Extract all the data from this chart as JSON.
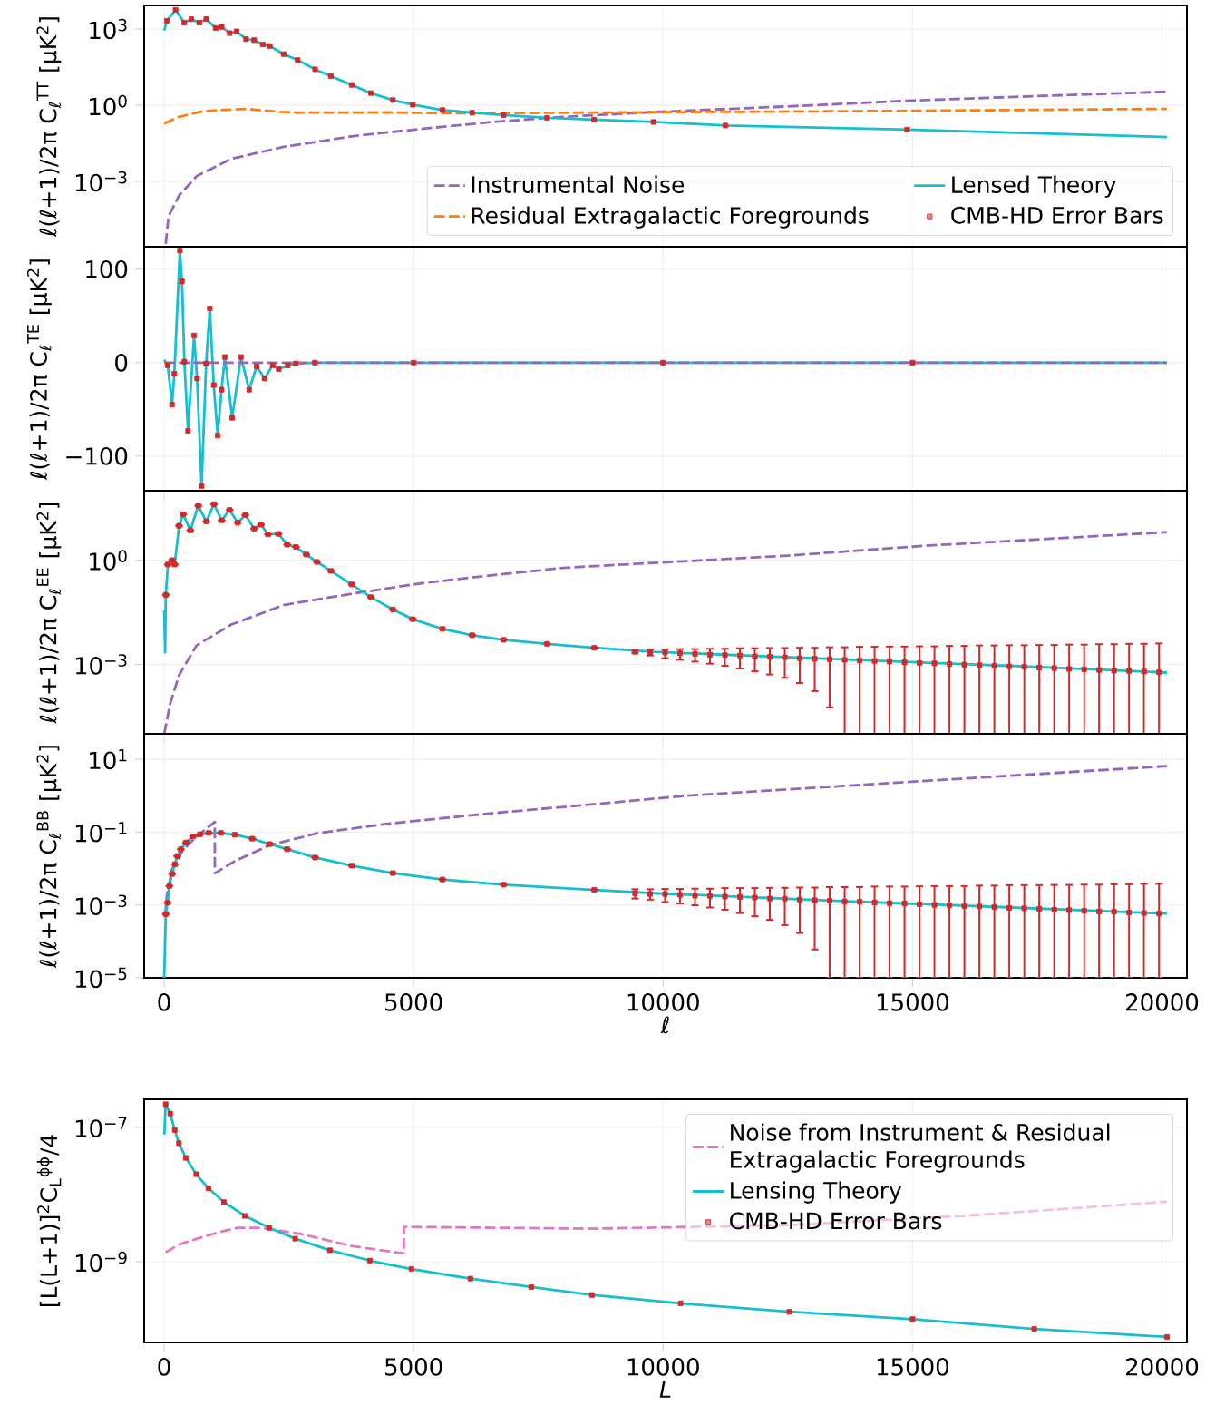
{
  "chart_data": [
    {
      "type": "line",
      "ylabel": "ℓ(ℓ+1)/2π C$_{ℓ}$$^{TT}$ [μK$^{2}$]",
      "xlim": [
        -400,
        20500
      ],
      "xticks": [
        0,
        5000,
        10000,
        15000,
        20000
      ],
      "ylim": [
        2.7e-06,
        8500
      ],
      "yticks": [
        {
          "value": 0.001,
          "label": "10$^{−3}$"
        },
        {
          "value": 1,
          "label": "10$^{0}$"
        },
        {
          "value": 1000,
          "label": "10$^{3}$"
        }
      ],
      "log": "y",
      "grid": true,
      "legend": "bottom right",
      "tick_labels": "y",
      "series": [
        {
          "name": "Instrumental Noise",
          "type": "line",
          "line_style": "dashed",
          "color": "#9467bd",
          "x": [
            33,
            89,
            300,
            649,
            1349,
            2397,
            3796,
            5195,
            6593,
            7991,
            9740,
            12500,
            14890,
            17500,
            20100
          ],
          "values": [
            3.5e-06,
            4.3e-05,
            0.00028,
            0.0016,
            0.0078,
            0.023,
            0.061,
            0.12,
            0.22,
            0.35,
            0.53,
            0.9,
            1.5,
            2.3,
            3.4
          ]
        },
        {
          "name": "Residual Extragalactic Foregrounds",
          "type": "line",
          "line_style": "dashed",
          "color": "#ff7f0e",
          "x": [
            2,
            300,
            789,
            1627,
            2255,
            2607,
            4495,
            5891,
            14890,
            20100
          ],
          "values": [
            0.19,
            0.35,
            0.59,
            0.72,
            0.56,
            0.51,
            0.52,
            0.48,
            0.6,
            0.72
          ]
        },
        {
          "name": "Lensed Theory",
          "type": "line",
          "line_style": "solid",
          "color": "#17becf",
          "x": [
            2,
            55,
            229,
            404,
            544,
            705,
            845,
            1033,
            1153,
            1313,
            1453,
            1642,
            1804,
            1978,
            2118,
            2397,
            2676,
            3027,
            3342,
            3760,
            4145,
            4585,
            4985,
            5578,
            6173,
            6804,
            7676,
            8618,
            9809,
            11250,
            14890,
            20100
          ],
          "values": [
            870,
            2100,
            5700,
            1780,
            2450,
            1780,
            2450,
            1100,
            1220,
            690,
            810,
            400,
            365,
            245,
            215,
            103,
            60,
            26,
            14,
            6.3,
            3.0,
            1.6,
            1.05,
            0.65,
            0.51,
            0.41,
            0.32,
            0.27,
            0.22,
            0.16,
            0.11,
            0.056
          ]
        },
        {
          "name": "CMB-HD Error Bars",
          "type": "scatter",
          "marker": "square",
          "color": "#d62728",
          "x": [
            55,
            229,
            404,
            544,
            705,
            845,
            1033,
            1153,
            1313,
            1453,
            1642,
            1804,
            1978,
            2118,
            2397,
            2676,
            3027,
            3342,
            3760,
            4145,
            4585,
            4985,
            5578,
            6173,
            6804,
            7676,
            8618,
            9809,
            11250,
            14890
          ],
          "values": [
            2100,
            5700,
            1780,
            2450,
            1780,
            2450,
            1100,
            1220,
            690,
            810,
            400,
            365,
            245,
            215,
            103,
            60,
            26,
            14,
            6.3,
            3.0,
            1.6,
            1.05,
            0.65,
            0.51,
            0.41,
            0.32,
            0.27,
            0.22,
            0.16,
            0.11
          ]
        }
      ]
    },
    {
      "type": "line",
      "ylabel": "ℓ(ℓ+1)/2π C$_{ℓ}$$^{TE}$ [μK$^{2}$]",
      "xlim": [
        -400,
        20500
      ],
      "xticks": [
        0,
        5000,
        10000,
        15000,
        20000
      ],
      "ylim": [
        -137,
        124
      ],
      "yticks": [
        {
          "value": -100,
          "label": "−100"
        },
        0,
        100
      ],
      "grid": true,
      "tick_labels": "y",
      "series": [
        {
          "type": "line",
          "line_style": "solid",
          "color": "#17becf",
          "x": [
            2,
            73,
            158,
            205,
            315,
            358,
            406,
            479,
            600,
            660,
            751,
            842,
            915,
            995,
            1073,
            1151,
            1218,
            1364,
            1540,
            1704,
            1855,
            2013,
            2176,
            2297,
            2479,
            2636,
            3024,
            5000,
            10000,
            15000,
            20100
          ],
          "values": [
            3,
            -3,
            -45,
            -12,
            120,
            87,
            1,
            -73,
            29,
            -17,
            -132,
            -1,
            58,
            -24,
            -78,
            -29,
            6,
            -59,
            6,
            -29,
            -4,
            -17,
            -3,
            -7,
            -3,
            -1,
            0,
            0,
            0,
            0,
            0
          ]
        },
        {
          "type": "line",
          "line_style": "dashed",
          "color": "#9467bd",
          "x": [
            2,
            20100
          ],
          "values": [
            0,
            0
          ]
        },
        {
          "type": "scatter",
          "marker": "square",
          "color": "#d62728",
          "x": [
            73,
            158,
            205,
            315,
            358,
            406,
            479,
            600,
            660,
            751,
            842,
            915,
            995,
            1073,
            1151,
            1218,
            1364,
            1540,
            1704,
            1855,
            2013,
            2176,
            2297,
            2479,
            2636,
            3024,
            5000,
            10000,
            15000
          ],
          "values": [
            -3,
            -45,
            -12,
            120,
            87,
            1,
            -73,
            29,
            -17,
            -132,
            -1,
            58,
            -24,
            -78,
            -29,
            6,
            -59,
            6,
            -29,
            -4,
            -17,
            -3,
            -7,
            -3,
            -1,
            0,
            0,
            0,
            0
          ]
        }
      ]
    },
    {
      "type": "line",
      "ylabel": "ℓ(ℓ+1)/2π C$_{ℓ}$$^{EE}$ [μK$^{2}$]",
      "xlim": [
        -400,
        20500
      ],
      "xticks": [
        0,
        5000,
        10000,
        15000,
        20000
      ],
      "ylim": [
        1e-05,
        100
      ],
      "yticks": [
        {
          "value": 0.001,
          "label": "10$^{−3}$"
        },
        {
          "value": 1,
          "label": "10$^{0}$"
        }
      ],
      "log": "y",
      "grid": true,
      "tick_labels": "y",
      "series": [
        {
          "type": "line",
          "line_style": "dashed",
          "color": "#9467bd",
          "x": [
            2,
            124,
            300,
            649,
            1349,
            2397,
            3796,
            5195,
            6593,
            7991,
            9436,
            12500,
            15250,
            20100
          ],
          "values": [
            1e-05,
            7.6e-05,
            0.00049,
            0.0035,
            0.014,
            0.051,
            0.11,
            0.22,
            0.37,
            0.6,
            0.78,
            1.35,
            2.6,
            6.4
          ]
        },
        {
          "type": "line",
          "line_style": "solid",
          "color": "#17becf",
          "x": [
            2,
            20,
            33,
            76,
            160,
            211,
            300,
            384,
            524,
            684,
            845,
            998,
            1153,
            1313,
            1475,
            1627,
            1804,
            1942,
            2082,
            2293,
            2467,
            2642,
            2851,
            3062,
            3342,
            3760,
            4145,
            4585,
            4985,
            5578,
            6173,
            6804,
            7676,
            8622,
            9809,
            13800,
            17000,
            20100
          ],
          "values": [
            0.036,
            0.0022,
            0.1,
            0.75,
            1.0,
            0.75,
            9.8,
            21,
            7.2,
            37,
            13,
            41,
            14,
            28,
            12,
            20,
            8.1,
            10.5,
            5.5,
            5.7,
            2.8,
            2.4,
            1.45,
            0.89,
            0.49,
            0.2,
            0.086,
            0.038,
            0.02,
            0.0105,
            0.0069,
            0.0051,
            0.0039,
            0.003,
            0.0023,
            0.00135,
            0.0009,
            0.00058
          ]
        },
        {
          "type": "scatter",
          "marker": "square",
          "color": "#d62728",
          "x": [
            33,
            76,
            160,
            211,
            300,
            384,
            524,
            684,
            845,
            998,
            1153,
            1313,
            1475,
            1627,
            1804,
            1942,
            2082,
            2293,
            2467,
            2642,
            2851,
            3062,
            3342,
            3760,
            4145,
            4585,
            4985,
            5578,
            6173,
            6804,
            7676,
            8622,
            9440,
            9740,
            10040,
            10340,
            10640,
            10940,
            11240,
            11540,
            11840,
            12140,
            12440,
            12740,
            13040,
            13340,
            13640,
            13940,
            14240,
            14540,
            14840,
            15140,
            15440,
            15740,
            16040,
            16340,
            16640,
            16940,
            17240,
            17540,
            17840,
            18140,
            18440,
            18740,
            19040,
            19340,
            19640,
            19940
          ],
          "values": [
            0.1,
            0.75,
            1.0,
            0.75,
            9.8,
            21,
            7.2,
            37,
            13,
            41,
            14,
            28,
            12,
            20,
            8.1,
            10.5,
            5.5,
            5.7,
            2.8,
            2.4,
            1.45,
            0.89,
            0.49,
            0.2,
            0.086,
            0.038,
            0.02,
            0.0105,
            0.0069,
            0.0051,
            0.0039,
            0.003,
            0.0023,
            0.0022,
            0.0022,
            0.0021,
            0.002,
            0.0019,
            0.00185,
            0.0018,
            0.0017,
            0.00165,
            0.0016,
            0.0015,
            0.00145,
            0.0014,
            0.00135,
            0.0013,
            0.00125,
            0.0012,
            0.00115,
            0.0011,
            0.00107,
            0.00102,
            0.00098,
            0.00095,
            0.00091,
            0.00087,
            0.00085,
            0.00081,
            0.00078,
            0.00074,
            0.00072,
            0.00069,
            0.00066,
            0.00065,
            0.00062,
            0.00059
          ],
          "errors": [
            null,
            null,
            null,
            null,
            null,
            null,
            null,
            null,
            null,
            null,
            null,
            null,
            null,
            null,
            null,
            null,
            null,
            null,
            null,
            null,
            null,
            null,
            null,
            null,
            null,
            null,
            null,
            null,
            null,
            null,
            null,
            null,
            [
              0.0021,
              0.0026
            ],
            [
              0.0018,
              0.0027
            ],
            [
              0.0015,
              0.0027
            ],
            [
              0.00135,
              0.00275
            ],
            [
              0.0012,
              0.00275
            ],
            [
              0.00105,
              0.0028
            ],
            [
              0.00091,
              0.0028
            ],
            [
              0.00076,
              0.0029
            ],
            [
              0.00063,
              0.0029
            ],
            [
              0.00051,
              0.00295
            ],
            [
              0.00041,
              0.00295
            ],
            [
              0.00029,
              0.003
            ],
            [
              0.00017,
              0.003
            ],
            [
              5.8e-05,
              0.0031
            ],
            [
              1e-05,
              0.0031
            ],
            [
              1e-05,
              0.0032
            ],
            [
              1e-05,
              0.0032
            ],
            [
              1e-05,
              0.00325
            ],
            [
              1e-05,
              0.00325
            ],
            [
              1e-05,
              0.0033
            ],
            [
              1e-05,
              0.0033
            ],
            [
              1e-05,
              0.0034
            ],
            [
              1e-05,
              0.0034
            ],
            [
              1e-05,
              0.0035
            ],
            [
              1e-05,
              0.0035
            ],
            [
              1e-05,
              0.00355
            ],
            [
              1e-05,
              0.00355
            ],
            [
              1e-05,
              0.0036
            ],
            [
              1e-05,
              0.0036
            ],
            [
              1e-05,
              0.0037
            ],
            [
              1e-05,
              0.0037
            ],
            [
              1e-05,
              0.0038
            ],
            [
              1e-05,
              0.0038
            ],
            [
              1e-05,
              0.0039
            ],
            [
              1e-05,
              0.0039
            ],
            [
              1e-05,
              0.004
            ]
          ]
        }
      ]
    },
    {
      "type": "line",
      "ylabel": "ℓ(ℓ+1)/2π C$_{ℓ}$$^{BB}$ [μK$^{2}$]",
      "xlabel": "ℓ",
      "xlim": [
        -400,
        20500
      ],
      "xticks": [
        0,
        5000,
        10000,
        15000,
        20000
      ],
      "ylim": [
        1e-05,
        50
      ],
      "yticks": [
        {
          "value": 1e-05,
          "label": "10$^{−5}$"
        },
        {
          "value": 0.001,
          "label": "10$^{−3}$"
        },
        {
          "value": 0.1,
          "label": "10$^{−1}$"
        },
        {
          "value": 10,
          "label": "10$^{1}$"
        }
      ],
      "log": "y",
      "grid": true,
      "series": [
        {
          "type": "line",
          "line_style": "dashed",
          "color": "#9467bd",
          "x": [
            20,
            55,
            157,
            365,
            646,
            1016,
            1016,
            1418,
            2118,
            3087,
            4484,
            6566,
            8656,
            10467,
            15180,
            20100
          ],
          "values": [
            0.0005,
            0.0018,
            0.0093,
            0.031,
            0.075,
            0.19,
            0.0074,
            0.016,
            0.044,
            0.094,
            0.17,
            0.33,
            0.59,
            1.0,
            2.5,
            6.5
          ]
        },
        {
          "type": "line",
          "line_style": "solid",
          "color": "#17becf",
          "x": [
            2,
            33,
            69,
            104,
            160,
            215,
            264,
            335,
            440,
            578,
            718,
            895,
            1138,
            1418,
            1767,
            2118,
            2467,
            3027,
            3760,
            4585,
            5578,
            6804,
            8622,
            9809,
            13800,
            17000,
            20100
          ],
          "values": [
            1e-05,
            0.00056,
            0.00115,
            0.0033,
            0.0071,
            0.013,
            0.022,
            0.034,
            0.052,
            0.076,
            0.087,
            0.095,
            0.095,
            0.085,
            0.066,
            0.047,
            0.034,
            0.02,
            0.012,
            0.0075,
            0.005,
            0.0036,
            0.0026,
            0.0021,
            0.00125,
            0.00085,
            0.00058
          ]
        },
        {
          "type": "scatter",
          "marker": "square",
          "color": "#d62728",
          "x": [
            33,
            69,
            104,
            160,
            215,
            264,
            335,
            440,
            578,
            718,
            895,
            1138,
            1418,
            1767,
            2118,
            2467,
            3027,
            3760,
            4585,
            5578,
            6804,
            8622,
            9440,
            9740,
            10040,
            10340,
            10640,
            10940,
            11240,
            11540,
            11840,
            12140,
            12440,
            12740,
            13040,
            13340,
            13640,
            13940,
            14240,
            14540,
            14840,
            15140,
            15440,
            15740,
            16040,
            16340,
            16640,
            16940,
            17240,
            17540,
            17840,
            18140,
            18440,
            18740,
            19040,
            19340,
            19640,
            19940
          ],
          "values": [
            0.00056,
            0.00115,
            0.0033,
            0.0071,
            0.013,
            0.022,
            0.034,
            0.052,
            0.076,
            0.087,
            0.095,
            0.095,
            0.085,
            0.066,
            0.047,
            0.034,
            0.02,
            0.012,
            0.0075,
            0.005,
            0.0036,
            0.0026,
            0.0021,
            0.002,
            0.002,
            0.0019,
            0.0018,
            0.00178,
            0.0017,
            0.00166,
            0.0016,
            0.0015,
            0.00148,
            0.0014,
            0.00135,
            0.0013,
            0.00125,
            0.00123,
            0.00117,
            0.00112,
            0.0011,
            0.00105,
            0.001,
            0.00098,
            0.00093,
            0.00091,
            0.00087,
            0.00083,
            0.00081,
            0.00078,
            0.00074,
            0.00072,
            0.00069,
            0.00066,
            0.00065,
            0.00062,
            0.0006,
            0.00058
          ],
          "errors": [
            null,
            null,
            null,
            null,
            null,
            null,
            null,
            null,
            null,
            null,
            null,
            null,
            null,
            null,
            null,
            null,
            null,
            null,
            null,
            null,
            null,
            null,
            [
              0.0015,
              0.0027
            ],
            [
              0.0014,
              0.0027
            ],
            [
              0.0012,
              0.00275
            ],
            [
              0.0011,
              0.00275
            ],
            [
              0.00098,
              0.0028
            ],
            [
              0.00085,
              0.0028
            ],
            [
              0.00074,
              0.0029
            ],
            [
              0.0006,
              0.0029
            ],
            [
              0.00049,
              0.0029
            ],
            [
              0.00039,
              0.00295
            ],
            [
              0.00028,
              0.00295
            ],
            [
              0.00017,
              0.003
            ],
            [
              6e-05,
              0.003
            ],
            [
              1e-05,
              0.0031
            ],
            [
              1e-05,
              0.0031
            ],
            [
              1e-05,
              0.0031
            ],
            [
              1e-05,
              0.0032
            ],
            [
              1e-05,
              0.0032
            ],
            [
              1e-05,
              0.0032
            ],
            [
              1e-05,
              0.00325
            ],
            [
              1e-05,
              0.0033
            ],
            [
              1e-05,
              0.0033
            ],
            [
              1e-05,
              0.0033
            ],
            [
              1e-05,
              0.0034
            ],
            [
              1e-05,
              0.0034
            ],
            [
              1e-05,
              0.0035
            ],
            [
              1e-05,
              0.0035
            ],
            [
              1e-05,
              0.0035
            ],
            [
              1e-05,
              0.00355
            ],
            [
              1e-05,
              0.00355
            ],
            [
              1e-05,
              0.0036
            ],
            [
              1e-05,
              0.0036
            ],
            [
              1e-05,
              0.0037
            ],
            [
              1e-05,
              0.0037
            ],
            [
              1e-05,
              0.0038
            ],
            [
              1e-05,
              0.0038
            ]
          ]
        }
      ]
    },
    {
      "type": "line",
      "ylabel": "[L(L+1)]$^{2}$C$_{L}$$^{ϕϕ}$/4",
      "xlabel": "L",
      "xlim": [
        -400,
        20500
      ],
      "xticks": [
        0,
        5000,
        10000,
        15000,
        20000
      ],
      "ylim": [
        6.3e-11,
        2.6e-07
      ],
      "yticks": [
        {
          "value": 1e-09,
          "label": "10$^{−9}$"
        },
        {
          "value": 1e-07,
          "label": "10$^{−7}$"
        }
      ],
      "log": "y",
      "grid": true,
      "legend": "top right",
      "series": [
        {
          "name": "Noise from Instrument & Residual Extragalactic Foregrounds",
          "type": "line",
          "line_style": "dashed",
          "color": "#e377c2",
          "x": [
            31,
            296,
            574,
            1062,
            1478,
            1896,
            2731,
            3775,
            4805,
            4805,
            6558,
            8645,
            12500,
            16000,
            20100
          ],
          "values": [
            1.38e-09,
            1.8e-09,
            2.1e-09,
            2.7e-09,
            3.2e-09,
            3.2e-09,
            2.6e-09,
            1.7e-09,
            1.33e-09,
            3.3e-09,
            3.2e-09,
            3.1e-09,
            3.5e-09,
            4.8e-09,
            7.8e-09
          ]
        },
        {
          "name": "Lensing Theory",
          "type": "line",
          "line_style": "solid",
          "color": "#17becf",
          "x": [
            4,
            31,
            122,
            213,
            296,
            435,
            644,
            887,
            1200,
            1618,
            2105,
            2627,
            3322,
            4124,
            4958,
            6140,
            7358,
            8576,
            10351,
            12530,
            15000,
            17440,
            20100
          ],
          "values": [
            7.8e-08,
            2.2e-07,
            1.6e-07,
            9.1e-08,
            5.8e-08,
            3.5e-08,
            2e-08,
            1.24e-08,
            7.7e-09,
            4.8e-09,
            3.2e-09,
            2.2e-09,
            1.48e-09,
            1.04e-09,
            7.8e-10,
            5.6e-10,
            4.2e-10,
            3.2e-10,
            2.4e-10,
            1.8e-10,
            1.4e-10,
            1e-10,
            7.6e-11
          ]
        },
        {
          "name": "CMB-HD Error Bars",
          "type": "scatter",
          "marker": "square",
          "color": "#d62728",
          "x": [
            31,
            122,
            213,
            296,
            435,
            644,
            887,
            1200,
            1618,
            2105,
            2627,
            3322,
            4124,
            4958,
            6140,
            7358,
            8576,
            10351,
            12530,
            15000,
            17440,
            20100
          ],
          "values": [
            2.2e-07,
            1.6e-07,
            9.1e-08,
            5.8e-08,
            3.5e-08,
            2e-08,
            1.24e-08,
            7.7e-09,
            4.8e-09,
            3.2e-09,
            2.2e-09,
            1.48e-09,
            1.04e-09,
            7.8e-10,
            5.6e-10,
            4.2e-10,
            3.2e-10,
            2.4e-10,
            1.8e-10,
            1.4e-10,
            1e-10,
            7.6e-11
          ]
        }
      ]
    }
  ]
}
